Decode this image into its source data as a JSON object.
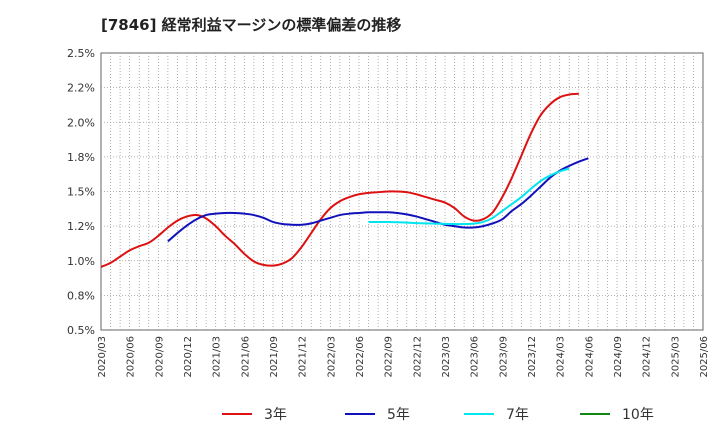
{
  "chart_data": {
    "type": "line",
    "title": "[7846]  経常利益マージンの標準偏差の推移",
    "xlabel": "",
    "ylabel": "",
    "ylim": [
      0.5,
      2.5
    ],
    "grid": true,
    "legend_position": "bottom",
    "y_ticks": [
      "0.5%",
      "0.8%",
      "1.0%",
      "1.2%",
      "1.5%",
      "1.8%",
      "2.0%",
      "2.2%",
      "2.5%"
    ],
    "x_ticks": [
      "2020/03",
      "2020/06",
      "2020/09",
      "2020/12",
      "2021/03",
      "2021/06",
      "2021/09",
      "2021/12",
      "2022/03",
      "2022/06",
      "2022/09",
      "2022/12",
      "2023/03",
      "2023/06",
      "2023/09",
      "2023/12",
      "2024/03",
      "2024/06",
      "2024/09",
      "2024/12",
      "2025/03",
      "2025/06"
    ],
    "series": [
      {
        "name": "3年",
        "color": "#dd1111",
        "start_index": 0,
        "values": [
          0.955,
          0.985,
          1.03,
          1.075,
          1.105,
          1.13,
          1.18,
          1.24,
          1.29,
          1.32,
          1.33,
          1.305,
          1.25,
          1.18,
          1.12,
          1.05,
          0.995,
          0.97,
          0.965,
          0.98,
          1.02,
          1.1,
          1.2,
          1.3,
          1.38,
          1.43,
          1.46,
          1.48,
          1.49,
          1.495,
          1.5,
          1.5,
          1.495,
          1.48,
          1.46,
          1.44,
          1.42,
          1.38,
          1.32,
          1.29,
          1.3,
          1.35,
          1.46,
          1.6,
          1.76,
          1.92,
          2.05,
          2.13,
          2.18,
          2.2,
          2.205
        ]
      },
      {
        "name": "5年",
        "color": "#1111bb",
        "start_index": 7,
        "values": [
          1.14,
          1.2,
          1.255,
          1.3,
          1.33,
          1.34,
          1.345,
          1.345,
          1.34,
          1.33,
          1.31,
          1.28,
          1.265,
          1.26,
          1.26,
          1.27,
          1.29,
          1.31,
          1.33,
          1.34,
          1.345,
          1.35,
          1.35,
          1.35,
          1.345,
          1.335,
          1.32,
          1.3,
          1.28,
          1.26,
          1.25,
          1.24,
          1.24,
          1.25,
          1.27,
          1.3,
          1.36,
          1.41,
          1.47,
          1.535,
          1.6,
          1.65,
          1.685,
          1.715,
          1.74
        ]
      },
      {
        "name": "7年",
        "color": "#00e5ee",
        "start_index": 28,
        "values": [
          1.28,
          1.28,
          1.28,
          1.278,
          1.275,
          1.272,
          1.27,
          1.268,
          1.266,
          1.265,
          1.265,
          1.268,
          1.28,
          1.31,
          1.36,
          1.41,
          1.46,
          1.52,
          1.575,
          1.615,
          1.645,
          1.665
        ]
      },
      {
        "name": "10年",
        "color": "#118811",
        "start_index": 0,
        "values": []
      }
    ]
  }
}
